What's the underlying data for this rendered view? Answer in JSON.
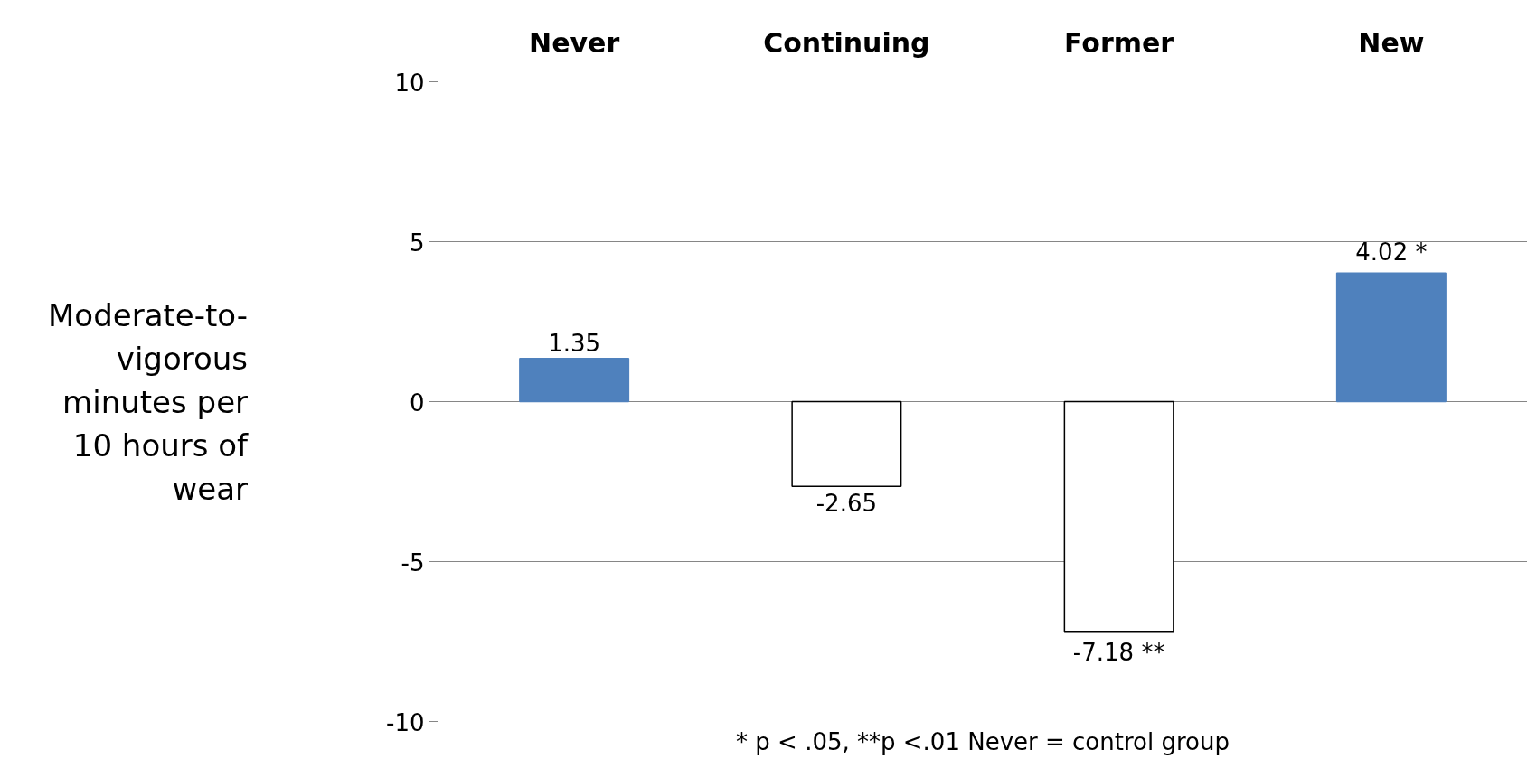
{
  "chart_data": {
    "type": "bar",
    "categories": [
      "Never",
      "Continuing",
      "Former",
      "New"
    ],
    "values": [
      1.35,
      -2.65,
      -7.18,
      4.02
    ],
    "colors": [
      "#4f81bd",
      "#ffffff",
      "#ffffff",
      "#4f81bd"
    ],
    "ylabel": "Moderate-to-vigorous minutes per 10 hours of wear",
    "ylim": [
      -10,
      10
    ],
    "yticks": [
      -10,
      -5,
      0,
      5,
      10
    ],
    "grid": "y",
    "value_labels": [
      "1.35",
      "-2.65",
      "-7.18 **",
      "4.02 *"
    ],
    "annotations": [
      "* p < .05, **p <.01 Never = control group"
    ]
  }
}
